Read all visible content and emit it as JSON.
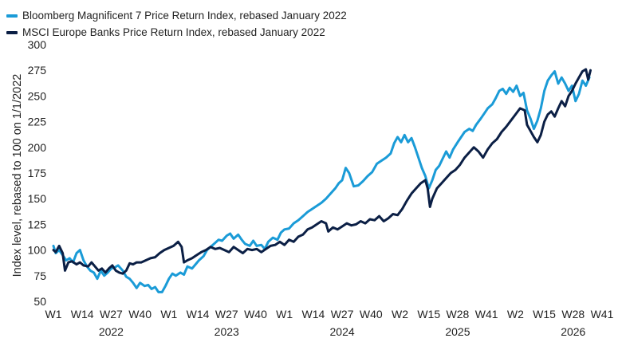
{
  "chart_data": {
    "type": "line",
    "title": "",
    "xlabel": "",
    "ylabel": "Index level, rebased to 100 on 1/1/2022",
    "ylim": [
      50,
      300
    ],
    "yticks": [
      50,
      75,
      100,
      125,
      150,
      175,
      200,
      225,
      250,
      275,
      300
    ],
    "grid": false,
    "legend_position": "top-left",
    "x_ticks": [
      {
        "label": "W1",
        "x": 2022.0
      },
      {
        "label": "W14",
        "x": 2022.25
      },
      {
        "label": "W27",
        "x": 2022.5
      },
      {
        "label": "W40",
        "x": 2022.75
      },
      {
        "label": "W1",
        "x": 2023.0
      },
      {
        "label": "W14",
        "x": 2023.25
      },
      {
        "label": "W27",
        "x": 2023.5
      },
      {
        "label": "W40",
        "x": 2023.75
      },
      {
        "label": "W1",
        "x": 2024.0
      },
      {
        "label": "W14",
        "x": 2024.25
      },
      {
        "label": "W27",
        "x": 2024.5
      },
      {
        "label": "W40",
        "x": 2024.75
      },
      {
        "label": "W2",
        "x": 2025.0
      },
      {
        "label": "W15",
        "x": 2025.25
      },
      {
        "label": "W28",
        "x": 2025.5
      },
      {
        "label": "W41",
        "x": 2025.75
      },
      {
        "label": "W2",
        "x": 2026.0
      },
      {
        "label": "W15",
        "x": 2026.25
      },
      {
        "label": "W28",
        "x": 2026.5
      },
      {
        "label": "W41",
        "x": 2026.75
      }
    ],
    "year_labels": [
      {
        "label": "2022",
        "x": 2022.5
      },
      {
        "label": "2023",
        "x": 2023.5
      },
      {
        "label": "2024",
        "x": 2024.5
      },
      {
        "label": "2025",
        "x": 2025.5
      },
      {
        "label": "2026",
        "x": 2026.5
      }
    ],
    "xlim": [
      2022.0,
      2026.75
    ],
    "series": [
      {
        "name": "Bloomberg Magnificent 7 Price Return Index, rebased January 2022",
        "color": "#1a9bd7",
        "points": [
          [
            2022.0,
            104
          ],
          [
            2022.02,
            97
          ],
          [
            2022.05,
            100
          ],
          [
            2022.08,
            95
          ],
          [
            2022.11,
            90
          ],
          [
            2022.14,
            92
          ],
          [
            2022.17,
            88
          ],
          [
            2022.2,
            97
          ],
          [
            2022.23,
            100
          ],
          [
            2022.26,
            90
          ],
          [
            2022.29,
            84
          ],
          [
            2022.32,
            80
          ],
          [
            2022.35,
            78
          ],
          [
            2022.38,
            72
          ],
          [
            2022.41,
            80
          ],
          [
            2022.44,
            75
          ],
          [
            2022.47,
            78
          ],
          [
            2022.5,
            82
          ],
          [
            2022.53,
            83
          ],
          [
            2022.56,
            85
          ],
          [
            2022.6,
            80
          ],
          [
            2022.63,
            74
          ],
          [
            2022.66,
            72
          ],
          [
            2022.69,
            68
          ],
          [
            2022.72,
            63
          ],
          [
            2022.75,
            68
          ],
          [
            2022.79,
            65
          ],
          [
            2022.82,
            66
          ],
          [
            2022.85,
            62
          ],
          [
            2022.88,
            64
          ],
          [
            2022.91,
            59
          ],
          [
            2022.94,
            59
          ],
          [
            2022.97,
            65
          ],
          [
            2023.0,
            72
          ],
          [
            2023.03,
            77
          ],
          [
            2023.06,
            75
          ],
          [
            2023.1,
            78
          ],
          [
            2023.13,
            76
          ],
          [
            2023.16,
            84
          ],
          [
            2023.2,
            82
          ],
          [
            2023.23,
            86
          ],
          [
            2023.26,
            90
          ],
          [
            2023.3,
            94
          ],
          [
            2023.33,
            100
          ],
          [
            2023.36,
            103
          ],
          [
            2023.4,
            107
          ],
          [
            2023.43,
            110
          ],
          [
            2023.46,
            109
          ],
          [
            2023.5,
            114
          ],
          [
            2023.53,
            116
          ],
          [
            2023.56,
            111
          ],
          [
            2023.6,
            115
          ],
          [
            2023.63,
            110
          ],
          [
            2023.66,
            106
          ],
          [
            2023.7,
            104
          ],
          [
            2023.73,
            109
          ],
          [
            2023.76,
            104
          ],
          [
            2023.8,
            105
          ],
          [
            2023.83,
            101
          ],
          [
            2023.86,
            108
          ],
          [
            2023.9,
            112
          ],
          [
            2023.94,
            110
          ],
          [
            2023.97,
            117
          ],
          [
            2024.0,
            120
          ],
          [
            2024.04,
            121
          ],
          [
            2024.08,
            126
          ],
          [
            2024.12,
            129
          ],
          [
            2024.16,
            133
          ],
          [
            2024.2,
            137
          ],
          [
            2024.24,
            140
          ],
          [
            2024.28,
            143
          ],
          [
            2024.32,
            146
          ],
          [
            2024.36,
            150
          ],
          [
            2024.4,
            155
          ],
          [
            2024.44,
            160
          ],
          [
            2024.47,
            165
          ],
          [
            2024.5,
            168
          ],
          [
            2024.53,
            180
          ],
          [
            2024.56,
            175
          ],
          [
            2024.6,
            162
          ],
          [
            2024.64,
            163
          ],
          [
            2024.68,
            167
          ],
          [
            2024.72,
            172
          ],
          [
            2024.76,
            176
          ],
          [
            2024.8,
            184
          ],
          [
            2024.84,
            187
          ],
          [
            2024.88,
            190
          ],
          [
            2024.92,
            194
          ],
          [
            2024.95,
            204
          ],
          [
            2024.98,
            210
          ],
          [
            2025.01,
            205
          ],
          [
            2025.04,
            212
          ],
          [
            2025.07,
            205
          ],
          [
            2025.1,
            209
          ],
          [
            2025.13,
            200
          ],
          [
            2025.16,
            190
          ],
          [
            2025.19,
            180
          ],
          [
            2025.22,
            172
          ],
          [
            2025.25,
            160
          ],
          [
            2025.28,
            168
          ],
          [
            2025.31,
            178
          ],
          [
            2025.34,
            182
          ],
          [
            2025.37,
            189
          ],
          [
            2025.4,
            196
          ],
          [
            2025.43,
            190
          ],
          [
            2025.46,
            198
          ],
          [
            2025.5,
            205
          ],
          [
            2025.53,
            210
          ],
          [
            2025.56,
            215
          ],
          [
            2025.6,
            218
          ],
          [
            2025.63,
            216
          ],
          [
            2025.66,
            222
          ],
          [
            2025.7,
            228
          ],
          [
            2025.73,
            233
          ],
          [
            2025.76,
            238
          ],
          [
            2025.8,
            242
          ],
          [
            2025.83,
            248
          ],
          [
            2025.86,
            255
          ],
          [
            2025.89,
            257
          ],
          [
            2025.92,
            252
          ],
          [
            2025.95,
            258
          ],
          [
            2025.98,
            254
          ],
          [
            2026.01,
            260
          ],
          [
            2026.04,
            250
          ],
          [
            2026.07,
            253
          ],
          [
            2026.1,
            236
          ],
          [
            2026.13,
            228
          ],
          [
            2026.16,
            218
          ],
          [
            2026.19,
            226
          ],
          [
            2026.22,
            238
          ],
          [
            2026.25,
            255
          ],
          [
            2026.28,
            265
          ],
          [
            2026.31,
            270
          ],
          [
            2026.34,
            274
          ],
          [
            2026.37,
            262
          ],
          [
            2026.4,
            268
          ],
          [
            2026.43,
            262
          ],
          [
            2026.46,
            255
          ],
          [
            2026.49,
            260
          ],
          [
            2026.52,
            245
          ],
          [
            2026.55,
            252
          ],
          [
            2026.58,
            265
          ],
          [
            2026.61,
            260
          ],
          [
            2026.64,
            268
          ]
        ]
      },
      {
        "name": "MSCI Europe Banks Price Return Index, rebased January 2022",
        "color": "#0b1f45",
        "points": [
          [
            2022.0,
            100
          ],
          [
            2022.02,
            98
          ],
          [
            2022.05,
            104
          ],
          [
            2022.08,
            97
          ],
          [
            2022.1,
            80
          ],
          [
            2022.13,
            88
          ],
          [
            2022.16,
            89
          ],
          [
            2022.2,
            86
          ],
          [
            2022.23,
            88
          ],
          [
            2022.26,
            85
          ],
          [
            2022.3,
            84
          ],
          [
            2022.33,
            88
          ],
          [
            2022.36,
            84
          ],
          [
            2022.39,
            80
          ],
          [
            2022.42,
            82
          ],
          [
            2022.45,
            78
          ],
          [
            2022.48,
            82
          ],
          [
            2022.51,
            85
          ],
          [
            2022.54,
            80
          ],
          [
            2022.57,
            78
          ],
          [
            2022.6,
            77
          ],
          [
            2022.63,
            80
          ],
          [
            2022.66,
            87
          ],
          [
            2022.69,
            86
          ],
          [
            2022.72,
            88
          ],
          [
            2022.76,
            88
          ],
          [
            2022.8,
            90
          ],
          [
            2022.84,
            92
          ],
          [
            2022.88,
            93
          ],
          [
            2022.92,
            97
          ],
          [
            2022.96,
            100
          ],
          [
            2023.0,
            102
          ],
          [
            2023.04,
            104
          ],
          [
            2023.08,
            108
          ],
          [
            2023.11,
            103
          ],
          [
            2023.13,
            88
          ],
          [
            2023.16,
            90
          ],
          [
            2023.2,
            92
          ],
          [
            2023.24,
            95
          ],
          [
            2023.28,
            98
          ],
          [
            2023.32,
            100
          ],
          [
            2023.36,
            103
          ],
          [
            2023.4,
            101
          ],
          [
            2023.44,
            102
          ],
          [
            2023.48,
            100
          ],
          [
            2023.52,
            98
          ],
          [
            2023.56,
            103
          ],
          [
            2023.6,
            100
          ],
          [
            2023.64,
            97
          ],
          [
            2023.68,
            101
          ],
          [
            2023.72,
            100
          ],
          [
            2023.76,
            101
          ],
          [
            2023.8,
            98
          ],
          [
            2023.84,
            101
          ],
          [
            2023.88,
            104
          ],
          [
            2023.92,
            105
          ],
          [
            2023.96,
            108
          ],
          [
            2024.0,
            105
          ],
          [
            2024.04,
            110
          ],
          [
            2024.08,
            108
          ],
          [
            2024.12,
            113
          ],
          [
            2024.16,
            115
          ],
          [
            2024.2,
            120
          ],
          [
            2024.24,
            122
          ],
          [
            2024.28,
            125
          ],
          [
            2024.32,
            128
          ],
          [
            2024.36,
            126
          ],
          [
            2024.38,
            118
          ],
          [
            2024.42,
            122
          ],
          [
            2024.46,
            120
          ],
          [
            2024.5,
            123
          ],
          [
            2024.54,
            126
          ],
          [
            2024.58,
            124
          ],
          [
            2024.62,
            125
          ],
          [
            2024.66,
            128
          ],
          [
            2024.7,
            126
          ],
          [
            2024.74,
            130
          ],
          [
            2024.78,
            129
          ],
          [
            2024.82,
            133
          ],
          [
            2024.86,
            128
          ],
          [
            2024.9,
            131
          ],
          [
            2024.94,
            135
          ],
          [
            2024.98,
            134
          ],
          [
            2025.02,
            140
          ],
          [
            2025.06,
            148
          ],
          [
            2025.1,
            155
          ],
          [
            2025.14,
            160
          ],
          [
            2025.18,
            165
          ],
          [
            2025.22,
            168
          ],
          [
            2025.24,
            160
          ],
          [
            2025.26,
            142
          ],
          [
            2025.28,
            150
          ],
          [
            2025.32,
            160
          ],
          [
            2025.36,
            165
          ],
          [
            2025.4,
            170
          ],
          [
            2025.44,
            175
          ],
          [
            2025.48,
            178
          ],
          [
            2025.52,
            183
          ],
          [
            2025.56,
            190
          ],
          [
            2025.6,
            195
          ],
          [
            2025.64,
            200
          ],
          [
            2025.68,
            196
          ],
          [
            2025.72,
            190
          ],
          [
            2025.76,
            198
          ],
          [
            2025.8,
            204
          ],
          [
            2025.84,
            208
          ],
          [
            2025.88,
            215
          ],
          [
            2025.92,
            220
          ],
          [
            2025.96,
            226
          ],
          [
            2026.0,
            232
          ],
          [
            2026.04,
            238
          ],
          [
            2026.08,
            236
          ],
          [
            2026.1,
            222
          ],
          [
            2026.13,
            216
          ],
          [
            2026.16,
            210
          ],
          [
            2026.19,
            205
          ],
          [
            2026.22,
            212
          ],
          [
            2026.25,
            225
          ],
          [
            2026.28,
            232
          ],
          [
            2026.31,
            235
          ],
          [
            2026.34,
            230
          ],
          [
            2026.37,
            238
          ],
          [
            2026.4,
            245
          ],
          [
            2026.43,
            240
          ],
          [
            2026.46,
            250
          ],
          [
            2026.49,
            255
          ],
          [
            2026.52,
            262
          ],
          [
            2026.55,
            268
          ],
          [
            2026.58,
            274
          ],
          [
            2026.61,
            276
          ],
          [
            2026.63,
            266
          ],
          [
            2026.65,
            275
          ]
        ]
      }
    ]
  }
}
